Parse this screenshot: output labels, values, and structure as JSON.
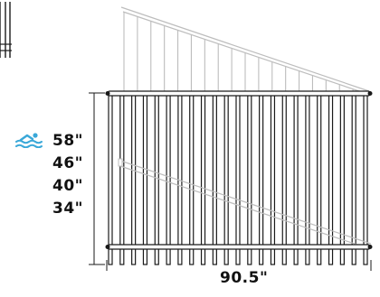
{
  "colors": {
    "rail": "#1a1a1a",
    "ghost": "#bdbdbd",
    "pool_icon": "#3aa8d8",
    "text": "#111111"
  },
  "icons": {
    "pool": "swimming-pool-icon"
  },
  "heights": [
    "58\"",
    "46\"",
    "40\"",
    "34\""
  ],
  "width_label": "90.5\"",
  "panel": {
    "picket_count": 23
  }
}
